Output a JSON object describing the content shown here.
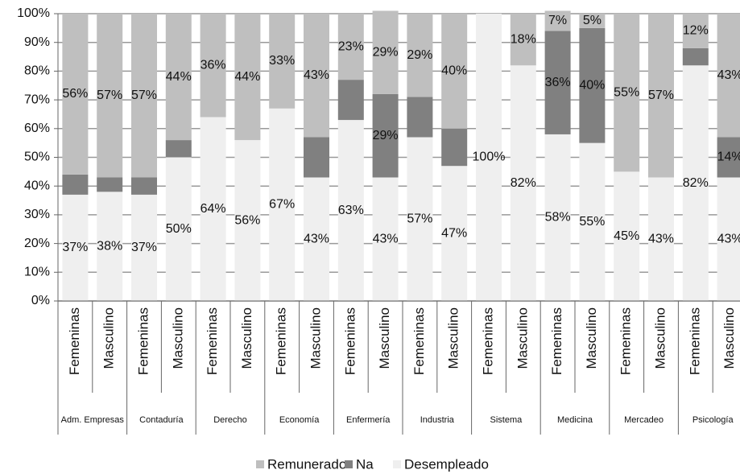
{
  "chart_data": {
    "type": "stacked_bar",
    "categories": [
      "Femeninas",
      "Masculino",
      "Femeninas",
      "Masculino",
      "Femeninas",
      "Masculino",
      "Femeninas",
      "Masculino",
      "Femeninas",
      "Masculino",
      "Femeninas",
      "Masculino",
      "Femeninas",
      "Masculino",
      "Femeninas",
      "Masculino",
      "Femeninas",
      "Masculino",
      "Femeninas",
      "Masculino"
    ],
    "groups": [
      "Adm. Empresas",
      "Contaduría",
      "Derecho",
      "Economía",
      "Enfermería",
      "Industria",
      "Sistema",
      "Medicina",
      "Mercadeo",
      "Psicología"
    ],
    "series": [
      {
        "name": "Remunerado",
        "color": "#bfbfbf",
        "values": [
          56,
          57,
          57,
          44,
          36,
          44,
          33,
          43,
          23,
          29,
          29,
          40,
          0,
          18,
          7,
          5,
          55,
          57,
          12,
          43
        ],
        "value_labels": [
          "56%",
          "57%",
          "57%",
          "44%",
          "36%",
          "44%",
          "33%",
          "43%",
          "23%",
          "29%",
          "29%",
          "40%",
          null,
          "18%",
          "7%",
          "5%",
          "55%",
          "57%",
          "12%",
          "43%"
        ]
      },
      {
        "name": "Na",
        "color": "#808080",
        "values": [
          7,
          5,
          6,
          6,
          0,
          0,
          0,
          14,
          14,
          29,
          14,
          13,
          0,
          0,
          36,
          40,
          0,
          0,
          6,
          14
        ],
        "value_labels": [
          null,
          null,
          null,
          null,
          null,
          null,
          null,
          null,
          null,
          "29%",
          null,
          null,
          null,
          null,
          "36%",
          "40%",
          null,
          null,
          null,
          "14%"
        ]
      },
      {
        "name": "Desempleado",
        "color": "#efefef",
        "values": [
          37,
          38,
          37,
          50,
          64,
          56,
          67,
          43,
          63,
          43,
          57,
          47,
          100,
          82,
          58,
          55,
          45,
          43,
          82,
          43
        ],
        "value_labels": [
          "37%",
          "38%",
          "37%",
          "50%",
          "64%",
          "56%",
          "67%",
          "43%",
          "63%",
          "43%",
          "57%",
          "47%",
          "100%",
          "82%",
          "58%",
          "55%",
          "45%",
          "43%",
          "82%",
          "43%"
        ]
      }
    ],
    "ylim": [
      0,
      100
    ],
    "yticks": [
      {
        "value": 0,
        "label": "0%"
      },
      {
        "value": 10,
        "label": "10%"
      },
      {
        "value": 20,
        "label": "20%"
      },
      {
        "value": 30,
        "label": "30%"
      },
      {
        "value": 40,
        "label": "40%"
      },
      {
        "value": 50,
        "label": "50%"
      },
      {
        "value": 60,
        "label": "60%"
      },
      {
        "value": 70,
        "label": "70%"
      },
      {
        "value": 80,
        "label": "80%"
      },
      {
        "value": 90,
        "label": "90%"
      },
      {
        "value": 100,
        "label": "100%"
      }
    ],
    "grid": true,
    "legend": "bottom"
  }
}
